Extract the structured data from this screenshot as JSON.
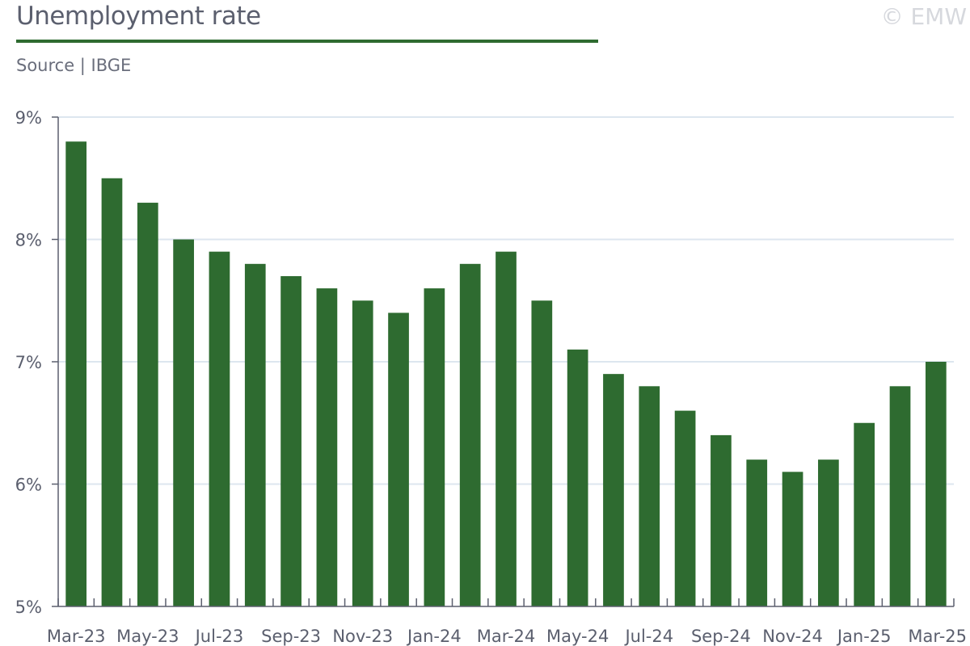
{
  "header": {
    "title": "Unemployment rate",
    "subtitle": "Source | IBGE",
    "watermark": "© EMW"
  },
  "colors": {
    "bar": "#2e6b30",
    "title_rule": "#2e6b30",
    "gridline": "#dde6ef",
    "axis": "#5b5f6e"
  },
  "chart_data": {
    "type": "bar",
    "categories": [
      "Mar-23",
      "Apr-23",
      "May-23",
      "Jun-23",
      "Jul-23",
      "Aug-23",
      "Sep-23",
      "Oct-23",
      "Nov-23",
      "Dec-23",
      "Jan-24",
      "Feb-24",
      "Mar-24",
      "Apr-24",
      "May-24",
      "Jun-24",
      "Jul-24",
      "Aug-24",
      "Sep-24",
      "Oct-24",
      "Nov-24",
      "Dec-24",
      "Jan-25",
      "Feb-25",
      "Mar-25"
    ],
    "x_tick_labels": [
      "Mar-23",
      "May-23",
      "Jul-23",
      "Sep-23",
      "Nov-23",
      "Jan-24",
      "Mar-24",
      "May-24",
      "Jul-24",
      "Sep-24",
      "Nov-24",
      "Jan-25",
      "Mar-25"
    ],
    "values": [
      8.8,
      8.5,
      8.3,
      8.0,
      7.9,
      7.8,
      7.7,
      7.6,
      7.5,
      7.4,
      7.6,
      7.8,
      7.9,
      7.5,
      7.1,
      6.9,
      6.8,
      6.6,
      6.4,
      6.2,
      6.1,
      6.2,
      6.5,
      6.8,
      7.0
    ],
    "ylim": [
      5,
      9
    ],
    "y_ticks": [
      5,
      6,
      7,
      8,
      9
    ],
    "y_tick_suffix": "%",
    "grid": true,
    "legend": "none"
  }
}
